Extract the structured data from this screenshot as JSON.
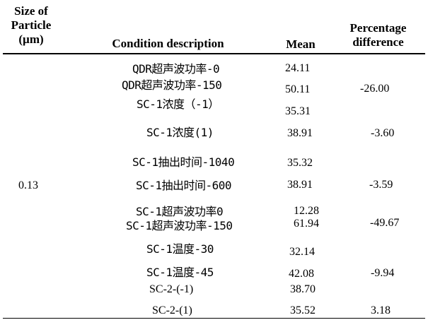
{
  "headers": {
    "size_line1": "Size of",
    "size_line2": "Particle",
    "size_line3": "(µm)",
    "condition": "Condition description",
    "mean": "Mean",
    "pct_line1": "Percentage",
    "pct_line2": "difference"
  },
  "size_value": "0.13",
  "rows": [
    {
      "desc": "QDR超声波功率-0",
      "mean": "24.11",
      "diff": ""
    },
    {
      "desc": "QDR超声波功率-150",
      "mean": "50.11",
      "diff": "-26.00"
    },
    {
      "desc": "SC-1浓度（-1）",
      "mean": "35.31",
      "diff": ""
    },
    {
      "desc": "SC-1浓度(1)",
      "mean": "38.91",
      "diff": "-3.60"
    },
    {
      "desc": "SC-1抽出时间-1040",
      "mean": "35.32",
      "diff": ""
    },
    {
      "desc": "SC-1抽出时间-600",
      "mean": "38.91",
      "diff": "-3.59"
    },
    {
      "desc": "SC-1超声波功率0",
      "mean": "12.28",
      "diff": ""
    },
    {
      "desc": "SC-1超声波功率-150",
      "mean": "61.94",
      "diff": "-49.67"
    },
    {
      "desc": "SC-1温度-30",
      "mean": "32.14",
      "diff": ""
    },
    {
      "desc": "SC-1温度-45",
      "mean": "42.08",
      "diff": "-9.94"
    },
    {
      "desc": "SC-2-(-1)",
      "mean": "38.70",
      "diff": ""
    },
    {
      "desc": "SC-2-(1)",
      "mean": "35.52",
      "diff": "3.18"
    }
  ]
}
